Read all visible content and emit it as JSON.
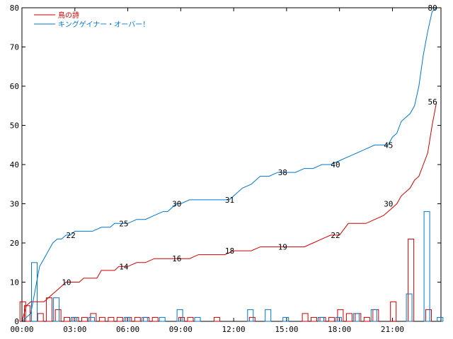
{
  "chart_data": {
    "type": "line",
    "title": "",
    "xlabel": "",
    "ylabel": "",
    "xlim": [
      0,
      23.75
    ],
    "ylim": [
      0,
      80
    ],
    "grid": false,
    "legend_position": "top-left",
    "colors": {
      "red": "#cc0000",
      "blue": "#0077cc",
      "axis": "#000000"
    },
    "x_ticks": [
      {
        "x": 0,
        "label": "00:00"
      },
      {
        "x": 3,
        "label": "03:00"
      },
      {
        "x": 6,
        "label": "06:00"
      },
      {
        "x": 9,
        "label": "09:00"
      },
      {
        "x": 12,
        "label": "12:00"
      },
      {
        "x": 15,
        "label": "15:00"
      },
      {
        "x": 18,
        "label": "18:00"
      },
      {
        "x": 21,
        "label": "21:00"
      }
    ],
    "y_ticks": [
      0,
      10,
      20,
      30,
      40,
      50,
      60,
      70,
      80
    ],
    "series": [
      {
        "name": "鳥の詩",
        "color": "#cc0000",
        "cumulative": [
          [
            0,
            0
          ],
          [
            0.25,
            4
          ],
          [
            0.5,
            5
          ],
          [
            1,
            5
          ],
          [
            1.25,
            5
          ],
          [
            1.5,
            6
          ],
          [
            1.75,
            7
          ],
          [
            2,
            8
          ],
          [
            2.25,
            9
          ],
          [
            2.5,
            10
          ],
          [
            3,
            10
          ],
          [
            3.25,
            10
          ],
          [
            3.5,
            11
          ],
          [
            4,
            11
          ],
          [
            4.25,
            11
          ],
          [
            4.5,
            13
          ],
          [
            5,
            13
          ],
          [
            5.25,
            13
          ],
          [
            5.5,
            14
          ],
          [
            6,
            14
          ],
          [
            6.5,
            15
          ],
          [
            7,
            15
          ],
          [
            7.5,
            16
          ],
          [
            8,
            16
          ],
          [
            8.5,
            16
          ],
          [
            9,
            16
          ],
          [
            9.5,
            16
          ],
          [
            10,
            17
          ],
          [
            10.5,
            17
          ],
          [
            11,
            17
          ],
          [
            11.5,
            17
          ],
          [
            12,
            18
          ],
          [
            12.5,
            18
          ],
          [
            13,
            18
          ],
          [
            13.5,
            19
          ],
          [
            14,
            19
          ],
          [
            14.5,
            19
          ],
          [
            15,
            19
          ],
          [
            15.5,
            19
          ],
          [
            16,
            19
          ],
          [
            16.5,
            20
          ],
          [
            17,
            21
          ],
          [
            17.5,
            22
          ],
          [
            18,
            22
          ],
          [
            18.5,
            25
          ],
          [
            19,
            25
          ],
          [
            19.5,
            25
          ],
          [
            20,
            26
          ],
          [
            20.5,
            27
          ],
          [
            21,
            29
          ],
          [
            21.25,
            30
          ],
          [
            21.5,
            32
          ],
          [
            22,
            34
          ],
          [
            22.25,
            36
          ],
          [
            22.5,
            37
          ],
          [
            22.75,
            40
          ],
          [
            23,
            43
          ],
          [
            23.25,
            50
          ],
          [
            23.5,
            56
          ]
        ],
        "hourly": [
          [
            0.25,
            5
          ],
          [
            0.5,
            4
          ],
          [
            1.25,
            2
          ],
          [
            1.75,
            6
          ],
          [
            2.25,
            3
          ],
          [
            2.75,
            1
          ],
          [
            3.25,
            1
          ],
          [
            3.75,
            1
          ],
          [
            4.25,
            2
          ],
          [
            4.75,
            1
          ],
          [
            5.25,
            1
          ],
          [
            5.75,
            1
          ],
          [
            6.25,
            1
          ],
          [
            6.75,
            1
          ],
          [
            7.25,
            1
          ],
          [
            7.75,
            1
          ],
          [
            8.75,
            0
          ],
          [
            9.25,
            1
          ],
          [
            9.75,
            1
          ],
          [
            11.25,
            1
          ],
          [
            13.25,
            1
          ],
          [
            16.25,
            2
          ],
          [
            16.75,
            1
          ],
          [
            17.25,
            1
          ],
          [
            17.75,
            1
          ],
          [
            18.25,
            3
          ],
          [
            18.75,
            2
          ],
          [
            19.25,
            2
          ],
          [
            19.75,
            1
          ],
          [
            20.25,
            3
          ],
          [
            21.25,
            5
          ],
          [
            22.25,
            21
          ],
          [
            23.25,
            3
          ]
        ],
        "labels": [
          [
            2.5,
            10,
            "10"
          ],
          [
            5.75,
            14,
            "14"
          ],
          [
            8.75,
            16,
            "16"
          ],
          [
            11.75,
            18,
            "18"
          ],
          [
            14.75,
            19,
            "19"
          ],
          [
            17.75,
            22,
            "22"
          ],
          [
            20.75,
            30,
            "30"
          ],
          [
            23.25,
            56,
            "56"
          ]
        ]
      },
      {
        "name": "キングゲイナー・オーバー！",
        "color": "#0077cc",
        "cumulative": [
          [
            0,
            0
          ],
          [
            0.25,
            1
          ],
          [
            0.5,
            2
          ],
          [
            0.75,
            8
          ],
          [
            1,
            14
          ],
          [
            1.25,
            16
          ],
          [
            1.5,
            18
          ],
          [
            1.75,
            20
          ],
          [
            2,
            21
          ],
          [
            2.25,
            21
          ],
          [
            2.5,
            22
          ],
          [
            2.75,
            22
          ],
          [
            3,
            23
          ],
          [
            3.5,
            23
          ],
          [
            4,
            23
          ],
          [
            4.5,
            24
          ],
          [
            5,
            24
          ],
          [
            5.25,
            25
          ],
          [
            5.5,
            25
          ],
          [
            6,
            25
          ],
          [
            6.5,
            26
          ],
          [
            7,
            26
          ],
          [
            7.5,
            27
          ],
          [
            8,
            28
          ],
          [
            8.25,
            28
          ],
          [
            8.5,
            29
          ],
          [
            8.75,
            30
          ],
          [
            9,
            30
          ],
          [
            9.5,
            31
          ],
          [
            10,
            31
          ],
          [
            10.5,
            31
          ],
          [
            11,
            31
          ],
          [
            11.5,
            31
          ],
          [
            11.75,
            31
          ],
          [
            12,
            32
          ],
          [
            12.5,
            34
          ],
          [
            13,
            35
          ],
          [
            13.5,
            37
          ],
          [
            14,
            37
          ],
          [
            14.5,
            38
          ],
          [
            15,
            38
          ],
          [
            15.5,
            38
          ],
          [
            16,
            39
          ],
          [
            16.5,
            39
          ],
          [
            17,
            40
          ],
          [
            17.5,
            40
          ],
          [
            18,
            41
          ],
          [
            18.5,
            42
          ],
          [
            19,
            43
          ],
          [
            19.5,
            44
          ],
          [
            20,
            45
          ],
          [
            20.5,
            45
          ],
          [
            20.75,
            45
          ],
          [
            21,
            47
          ],
          [
            21.25,
            48
          ],
          [
            21.5,
            51
          ],
          [
            21.75,
            52
          ],
          [
            22,
            53
          ],
          [
            22.25,
            55
          ],
          [
            22.5,
            60
          ],
          [
            22.75,
            68
          ],
          [
            23,
            74
          ],
          [
            23.25,
            79
          ],
          [
            23.5,
            80
          ]
        ],
        "hourly": [
          [
            0.5,
            15
          ],
          [
            1.75,
            6
          ],
          [
            2.75,
            1
          ],
          [
            3.75,
            1
          ],
          [
            5.75,
            1
          ],
          [
            6.75,
            1
          ],
          [
            7.75,
            1
          ],
          [
            8.75,
            3
          ],
          [
            9.75,
            1
          ],
          [
            12.75,
            3
          ],
          [
            13.75,
            3
          ],
          [
            14.75,
            1
          ],
          [
            16.75,
            1
          ],
          [
            17.75,
            1
          ],
          [
            18.75,
            2
          ],
          [
            19.75,
            3
          ],
          [
            21.75,
            7
          ],
          [
            22.75,
            28
          ],
          [
            23.5,
            1
          ]
        ],
        "labels": [
          [
            2.75,
            22,
            "22"
          ],
          [
            5.75,
            25,
            "25"
          ],
          [
            8.75,
            30,
            "30"
          ],
          [
            11.75,
            31,
            "31"
          ],
          [
            14.75,
            38,
            "38"
          ],
          [
            17.75,
            40,
            "40"
          ],
          [
            20.75,
            45,
            "45"
          ],
          [
            23.25,
            80,
            "80"
          ]
        ]
      }
    ]
  }
}
